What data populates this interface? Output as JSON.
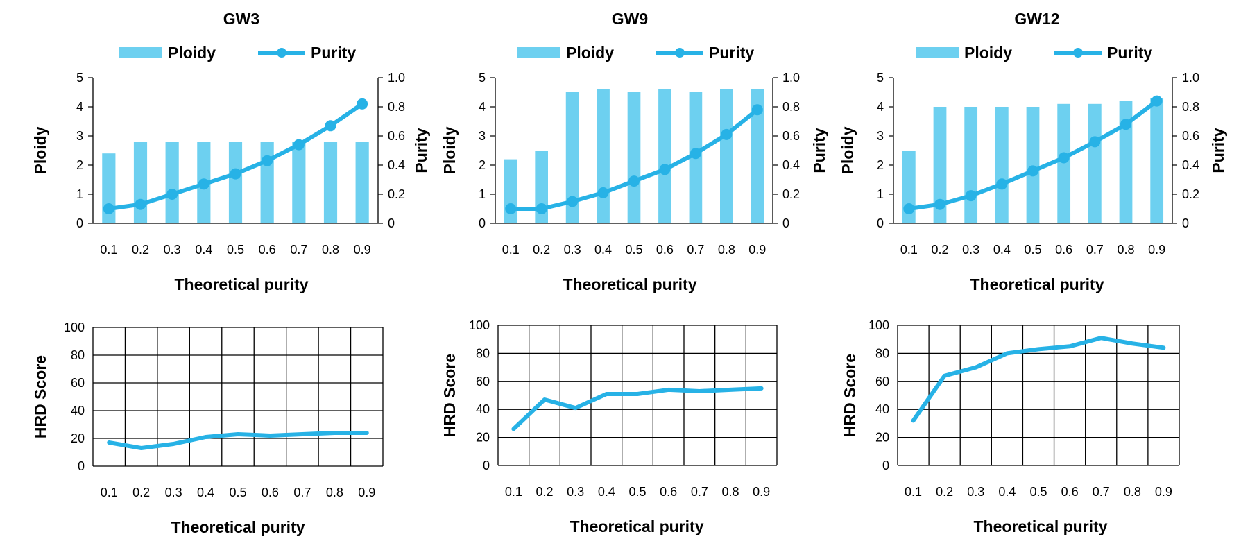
{
  "chart_data": [
    {
      "type": "bar+line",
      "title": "GW3",
      "legend": [
        "Ploidy",
        "Purity"
      ],
      "xlabel": "Theoretical purity",
      "ylabel": "Ploidy",
      "y2label": "Purity",
      "categories": [
        "0.1",
        "0.2",
        "0.3",
        "0.4",
        "0.5",
        "0.6",
        "0.7",
        "0.8",
        "0.9"
      ],
      "ylim": [
        0,
        5
      ],
      "y2lim": [
        0,
        1.0
      ],
      "yticks": [
        "0",
        "1",
        "2",
        "3",
        "4",
        "5"
      ],
      "y2ticks": [
        "0",
        "0.2",
        "0.4",
        "0.6",
        "0.8",
        "1.0"
      ],
      "series": [
        {
          "name": "Ploidy",
          "kind": "bar",
          "axis": "left",
          "values": [
            2.4,
            2.8,
            2.8,
            2.8,
            2.8,
            2.8,
            2.8,
            2.8,
            2.8
          ]
        },
        {
          "name": "Purity",
          "kind": "line",
          "axis": "right",
          "values": [
            0.1,
            0.13,
            0.2,
            0.27,
            0.34,
            0.43,
            0.54,
            0.67,
            0.82
          ]
        }
      ]
    },
    {
      "type": "bar+line",
      "title": "GW9",
      "legend": [
        "Ploidy",
        "Purity"
      ],
      "xlabel": "Theoretical purity",
      "ylabel": "Ploidy",
      "y2label": "Purity",
      "categories": [
        "0.1",
        "0.2",
        "0.3",
        "0.4",
        "0.5",
        "0.6",
        "0.7",
        "0.8",
        "0.9"
      ],
      "ylim": [
        0,
        5
      ],
      "y2lim": [
        0,
        1.0
      ],
      "yticks": [
        "0",
        "1",
        "2",
        "3",
        "4",
        "5"
      ],
      "y2ticks": [
        "0",
        "0.2",
        "0.4",
        "0.6",
        "0.8",
        "1.0"
      ],
      "series": [
        {
          "name": "Ploidy",
          "kind": "bar",
          "axis": "left",
          "values": [
            2.2,
            2.5,
            4.5,
            4.6,
            4.5,
            4.6,
            4.5,
            4.6,
            4.6
          ]
        },
        {
          "name": "Purity",
          "kind": "line",
          "axis": "right",
          "values": [
            0.1,
            0.1,
            0.15,
            0.21,
            0.29,
            0.37,
            0.48,
            0.61,
            0.78
          ]
        }
      ]
    },
    {
      "type": "bar+line",
      "title": "GW12",
      "legend": [
        "Ploidy",
        "Purity"
      ],
      "xlabel": "Theoretical purity",
      "ylabel": "Ploidy",
      "y2label": "Purity",
      "categories": [
        "0.1",
        "0.2",
        "0.3",
        "0.4",
        "0.5",
        "0.6",
        "0.7",
        "0.8",
        "0.9"
      ],
      "ylim": [
        0,
        5
      ],
      "y2lim": [
        0,
        1.0
      ],
      "yticks": [
        "0",
        "1",
        "2",
        "3",
        "4",
        "5"
      ],
      "y2ticks": [
        "0",
        "0.2",
        "0.4",
        "0.6",
        "0.8",
        "1.0"
      ],
      "series": [
        {
          "name": "Ploidy",
          "kind": "bar",
          "axis": "left",
          "values": [
            2.5,
            4.0,
            4.0,
            4.0,
            4.0,
            4.1,
            4.1,
            4.2,
            4.3
          ]
        },
        {
          "name": "Purity",
          "kind": "line",
          "axis": "right",
          "values": [
            0.1,
            0.13,
            0.19,
            0.27,
            0.36,
            0.45,
            0.56,
            0.68,
            0.84
          ]
        }
      ]
    },
    {
      "type": "line",
      "title": "",
      "xlabel": "Theoretical purity",
      "ylabel": "HRD Score",
      "categories": [
        "0.1",
        "0.2",
        "0.3",
        "0.4",
        "0.5",
        "0.6",
        "0.7",
        "0.8",
        "0.9"
      ],
      "ylim": [
        0,
        100
      ],
      "yticks": [
        "0",
        "20",
        "40",
        "60",
        "80",
        "100"
      ],
      "grid": true,
      "series": [
        {
          "name": "HRD Score",
          "values": [
            17,
            13,
            16,
            21,
            23,
            22,
            23,
            24,
            24
          ]
        }
      ]
    },
    {
      "type": "line",
      "title": "",
      "xlabel": "Theoretical purity",
      "ylabel": "HRD Score",
      "categories": [
        "0.1",
        "0.2",
        "0.3",
        "0.4",
        "0.5",
        "0.6",
        "0.7",
        "0.8",
        "0.9"
      ],
      "ylim": [
        0,
        100
      ],
      "yticks": [
        "0",
        "20",
        "40",
        "60",
        "80",
        "100"
      ],
      "grid": true,
      "series": [
        {
          "name": "HRD Score",
          "values": [
            26,
            47,
            41,
            51,
            51,
            54,
            53,
            54,
            55
          ]
        }
      ]
    },
    {
      "type": "line",
      "title": "",
      "xlabel": "Theoretical purity",
      "ylabel": "HRD Score",
      "categories": [
        "0.1",
        "0.2",
        "0.3",
        "0.4",
        "0.5",
        "0.6",
        "0.7",
        "0.8",
        "0.9"
      ],
      "ylim": [
        0,
        100
      ],
      "yticks": [
        "0",
        "20",
        "40",
        "60",
        "80",
        "100"
      ],
      "grid": true,
      "series": [
        {
          "name": "HRD Score",
          "values": [
            32,
            64,
            70,
            80,
            83,
            85,
            91,
            87,
            84
          ]
        }
      ]
    }
  ],
  "colors": {
    "bar": "#6dd0f0",
    "line": "#27b2e6",
    "axis": "#000000"
  }
}
